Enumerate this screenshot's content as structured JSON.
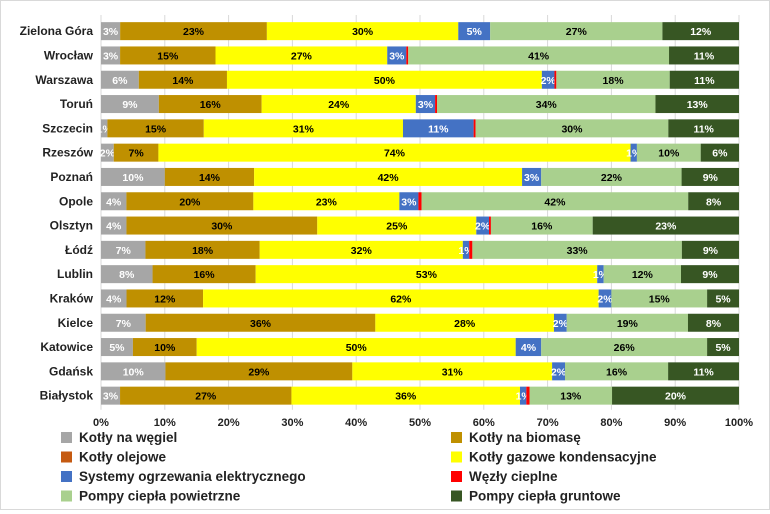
{
  "chart_data": {
    "type": "bar",
    "orientation": "horizontal",
    "stacked": "percent",
    "categories": [
      "Zielona Góra",
      "Wrocław",
      "Warszawa",
      "Toruń",
      "Szczecin",
      "Rzeszów",
      "Poznań",
      "Opole",
      "Olsztyn",
      "Łódź",
      "Lublin",
      "Kraków",
      "Kielce",
      "Katowice",
      "Gdańsk",
      "Białystok"
    ],
    "series": [
      {
        "name": "Kotły na węgiel",
        "color": "#a6a6a6",
        "values": [
          3,
          3,
          6,
          9,
          1,
          2,
          10,
          4,
          4,
          7,
          8,
          4,
          7,
          5,
          10,
          3
        ],
        "labels": [
          "3%",
          "3%",
          "6%",
          "9%",
          "1%",
          "2%",
          "10%",
          "4%",
          "4%",
          "7%",
          "8%",
          "4%",
          "7%",
          "5%",
          "10%",
          "3%"
        ]
      },
      {
        "name": "Kotły na biomasę",
        "color": "#bf9000",
        "values": [
          23,
          15,
          14,
          16,
          15,
          7,
          14,
          20,
          30,
          18,
          16,
          12,
          36,
          10,
          29,
          27
        ],
        "labels": [
          "23%",
          "15%",
          "14%",
          "16%",
          "15%",
          "7%",
          "14%",
          "20%",
          "30%",
          "18%",
          "16%",
          "12%",
          "36%",
          "10%",
          "29%",
          "27%"
        ]
      },
      {
        "name": "Kotły olejowe",
        "color": "#c55a11",
        "values": [
          0,
          0,
          0,
          0,
          0,
          0,
          0,
          0,
          0,
          0,
          0,
          0,
          0,
          0,
          0,
          0
        ],
        "labels": [
          "",
          "",
          "",
          "",
          "",
          "",
          "",
          "",
          "",
          "",
          "",
          "",
          "",
          "",
          "",
          ""
        ]
      },
      {
        "name": "Kotły gazowe kondensacyjne",
        "color": "#ffff00",
        "values": [
          30,
          27,
          50,
          24,
          31,
          74,
          42,
          23,
          25,
          32,
          53,
          62,
          28,
          50,
          31,
          36
        ],
        "labels": [
          "30%",
          "27%",
          "50%",
          "24%",
          "31%",
          "74%",
          "42%",
          "23%",
          "25%",
          "32%",
          "53%",
          "62%",
          "28%",
          "50%",
          "31%",
          "36%"
        ]
      },
      {
        "name": "Systemy ogrzewania elektrycznego",
        "color": "#4472c4",
        "values": [
          5,
          3,
          2,
          3,
          11,
          1,
          3,
          3,
          2,
          1,
          1,
          2,
          2,
          4,
          2,
          1
        ],
        "labels": [
          "5%",
          "3%",
          "2%",
          "3%",
          "11%",
          "1%",
          "3%",
          "3%",
          "2%",
          "1%",
          "1%",
          "2%",
          "2%",
          "4%",
          "2%",
          "1%"
        ]
      },
      {
        "name": "Węzły cieplne",
        "color": "#ff0000",
        "values": [
          0,
          0.3,
          0.3,
          0.3,
          0.3,
          0,
          0,
          0.5,
          0.3,
          0.5,
          0,
          0,
          0,
          0,
          0,
          0.5
        ],
        "labels": [
          "",
          "",
          "",
          "",
          "",
          "",
          "",
          "",
          "",
          "",
          "",
          "",
          "",
          "",
          "",
          ""
        ]
      },
      {
        "name": "Pompy ciepła powietrzne",
        "color": "#a9d08e",
        "values": [
          27,
          41,
          18,
          34,
          30,
          10,
          22,
          42,
          16,
          33,
          12,
          15,
          19,
          26,
          16,
          13
        ],
        "labels": [
          "27%",
          "41%",
          "18%",
          "34%",
          "30%",
          "10%",
          "22%",
          "42%",
          "16%",
          "33%",
          "12%",
          "15%",
          "19%",
          "26%",
          "16%",
          "13%"
        ]
      },
      {
        "name": "Pompy ciepła gruntowe",
        "color": "#375623",
        "values": [
          12,
          11,
          11,
          13,
          11,
          6,
          9,
          8,
          23,
          9,
          9,
          5,
          8,
          5,
          11,
          20
        ],
        "labels": [
          "12%",
          "11%",
          "11%",
          "13%",
          "11%",
          "6%",
          "9%",
          "8%",
          "23%",
          "9%",
          "9%",
          "5%",
          "8%",
          "5%",
          "11%",
          "20%"
        ]
      }
    ],
    "xlim": [
      0,
      100
    ],
    "x_ticks": [
      "0%",
      "10%",
      "20%",
      "30%",
      "40%",
      "50%",
      "60%",
      "70%",
      "80%",
      "90%",
      "100%"
    ],
    "grid": true,
    "legend_position": "bottom",
    "legend_columns": 2,
    "title": "",
    "xlabel": "",
    "ylabel": ""
  }
}
